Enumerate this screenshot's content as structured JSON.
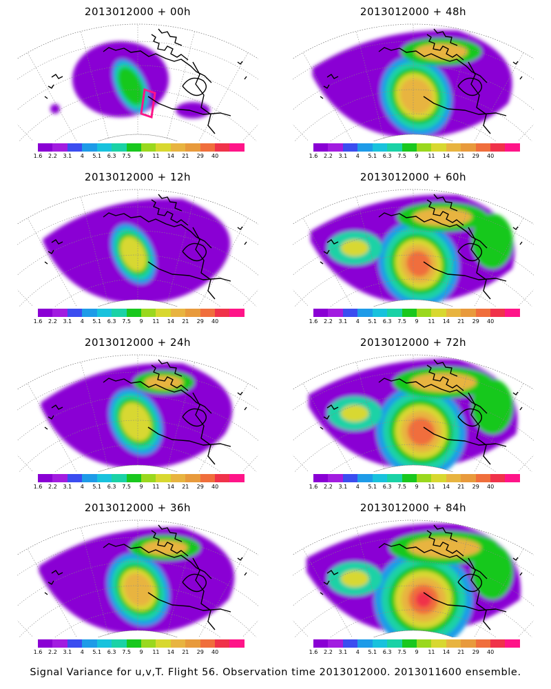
{
  "panels": [
    {
      "title": "2013012000 + 00h",
      "lead": 0
    },
    {
      "title": "2013012000 + 48h",
      "lead": 48
    },
    {
      "title": "2013012000 + 12h",
      "lead": 12
    },
    {
      "title": "2013012000 + 60h",
      "lead": 60
    },
    {
      "title": "2013012000 + 24h",
      "lead": 24
    },
    {
      "title": "2013012000 + 72h",
      "lead": 72
    },
    {
      "title": "2013012000 + 36h",
      "lead": 36
    },
    {
      "title": "2013012000 + 84h",
      "lead": 84
    }
  ],
  "colorbar": {
    "labels": [
      "1.6",
      "2.2",
      "3.1",
      "4",
      "5.1",
      "6.3",
      "7.5",
      "9",
      "11",
      "14",
      "21",
      "29",
      "40"
    ],
    "colors": [
      "#8a00d4",
      "#a21ce0",
      "#3b4df0",
      "#1e9be8",
      "#18c2dd",
      "#1ad2a6",
      "#19c81e",
      "#9ad81e",
      "#d8d830",
      "#e8b440",
      "#e89a3c",
      "#f06e3c",
      "#f0324a",
      "#ff1488"
    ]
  },
  "footer": "Signal Variance for u,v,T. Flight 56. Observation time 2013012000. 2013011600 ensemble."
}
